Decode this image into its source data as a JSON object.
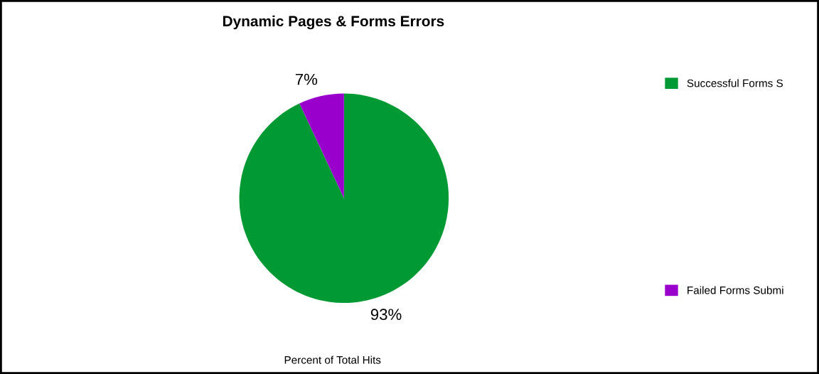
{
  "chart_data": {
    "type": "pie",
    "title": "Dynamic Pages & Forms Errors",
    "categories": [
      "Successful Forms S",
      "Failed Forms Submi"
    ],
    "values": [
      93,
      7
    ],
    "colors": [
      "#009933",
      "#9900cc"
    ],
    "value_labels": [
      "93%",
      "7%"
    ],
    "legend": "right",
    "annotations": [
      "Percent of Total Hits"
    ]
  }
}
